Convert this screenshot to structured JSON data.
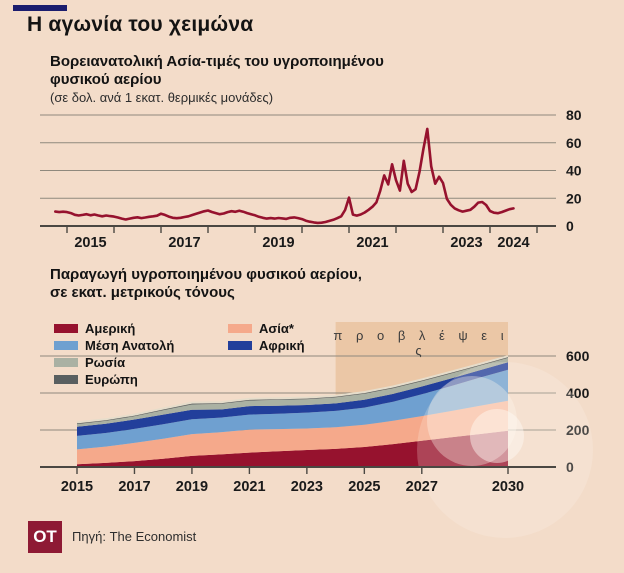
{
  "page": {
    "background_color": "#f3dcc9",
    "accent_color": "#1b1d6e",
    "title": "Η αγωνία του χειμώνα"
  },
  "chart1": {
    "heading_line1": "Βορειανατολική Ασία-τιμές του υγροποιημένου",
    "heading_line2": "φυσικού αερίου",
    "note": "(σε δολ. ανά 1 εκατ. θερμικές μονάδες)"
  },
  "chart2": {
    "heading_line1": "Παραγωγή υγροποιημένου φυσικού αερίου,",
    "heading_line2": "σε εκατ. μετρικούς τόνους",
    "forecast_label": "π ρ ο β λ έ ψ ε ι ς"
  },
  "footer": {
    "logo_text": "OT",
    "source": "Πηγή: The Economist"
  },
  "chart_data": [
    {
      "type": "line",
      "title": "Βορειανατολική Ασία - τιμές του υγροποιημένου φυσικού αερίου",
      "ylabel": "σε δολ. ανά 1 εκατ. θερμικές μονάδες",
      "line_color": "#96122e",
      "grid": true,
      "legend_position": "none",
      "xlim": [
        2014.4,
        2025.4
      ],
      "ylim": [
        0,
        80
      ],
      "y_ticks": [
        0,
        20,
        40,
        60,
        80
      ],
      "x_minor_ticks": [
        2015,
        2016,
        2017,
        2018,
        2019,
        2020,
        2021,
        2022,
        2023,
        2024,
        2025
      ],
      "x_tick_labels": [
        {
          "x": 2015.5,
          "label": "2015"
        },
        {
          "x": 2017.5,
          "label": "2017"
        },
        {
          "x": 2019.5,
          "label": "2019"
        },
        {
          "x": 2021.5,
          "label": "2021"
        },
        {
          "x": 2023.5,
          "label": "2023"
        },
        {
          "x": 2024.5,
          "label": "2024"
        }
      ],
      "x_start": 2014.75,
      "x_step": 0.0833333,
      "values": [
        10.4,
        10.0,
        10.3,
        10.0,
        9.3,
        8.1,
        7.6,
        8.0,
        8.5,
        7.7,
        8.3,
        7.6,
        7.0,
        7.6,
        7.1,
        6.8,
        6.1,
        5.3,
        4.7,
        5.3,
        5.9,
        6.3,
        5.7,
        6.1,
        6.6,
        7.0,
        7.4,
        8.9,
        8.0,
        6.8,
        5.9,
        5.6,
        5.9,
        6.5,
        7.0,
        7.9,
        8.8,
        9.7,
        10.6,
        11.2,
        10.1,
        9.3,
        8.5,
        9.0,
        10.0,
        10.7,
        10.2,
        11.0,
        10.3,
        9.3,
        8.5,
        7.7,
        6.6,
        5.9,
        5.3,
        5.7,
        5.3,
        5.8,
        5.5,
        5.1,
        5.9,
        6.2,
        5.7,
        5.0,
        3.8,
        3.1,
        2.6,
        2.2,
        2.4,
        2.9,
        3.7,
        4.5,
        5.6,
        7.0,
        11.5,
        20.5,
        8.2,
        7.5,
        8.3,
        9.7,
        11.7,
        13.9,
        17.0,
        25.5,
        36.5,
        30.0,
        44.5,
        33.0,
        25.5,
        47.0,
        30.5,
        24.5,
        26.5,
        39.0,
        55.5,
        70.0,
        43.0,
        30.5,
        35.5,
        31.0,
        19.5,
        15.3,
        12.7,
        11.3,
        10.4,
        11.0,
        11.7,
        13.9,
        16.9,
        17.3,
        15.1,
        10.8,
        9.6,
        9.2,
        10.0,
        11.1,
        12.1,
        12.7
      ]
    },
    {
      "type": "area",
      "title": "Παραγωγή υγροποιημένου φυσικού αερίου, σε εκατ. μετρικούς τόνους",
      "stacked": true,
      "grid": true,
      "xlim": [
        2015,
        2030
      ],
      "ylim": [
        0,
        650
      ],
      "y_ticks": [
        0,
        200,
        400,
        600
      ],
      "x_tick_labels": [
        2015,
        2017,
        2019,
        2021,
        2023,
        2025,
        2027,
        2030
      ],
      "forecast_start": 2024,
      "forecast_shade_color": "#ebc7a6",
      "categories": [
        2015,
        2016,
        2017,
        2018,
        2019,
        2020,
        2021,
        2022,
        2023,
        2024,
        2025,
        2026,
        2027,
        2028,
        2029,
        2030
      ],
      "series": [
        {
          "name": "Αμερική",
          "color": "#96122e",
          "values": [
            15,
            22,
            32,
            45,
            60,
            68,
            78,
            85,
            92,
            98,
            108,
            124,
            142,
            160,
            178,
            196
          ]
        },
        {
          "name": "Ασία*",
          "color": "#f5a98b",
          "values": [
            80,
            88,
            98,
            108,
            118,
            120,
            124,
            120,
            116,
            117,
            120,
            126,
            133,
            142,
            152,
            162
          ]
        },
        {
          "name": "Μέση Ανατολή",
          "color": "#6fa0d0",
          "values": [
            73,
            74,
            76,
            78,
            80,
            79,
            81,
            83,
            86,
            88,
            93,
            103,
            118,
            135,
            152,
            168
          ]
        },
        {
          "name": "Αφρική",
          "color": "#223f9b",
          "values": [
            50,
            50,
            51,
            52,
            51,
            44,
            46,
            43,
            41,
            41,
            42,
            42,
            42,
            41,
            40,
            40
          ]
        },
        {
          "name": "Ρωσία",
          "color": "#aab1a3",
          "values": [
            14,
            15,
            17,
            24,
            29,
            30,
            30,
            32,
            31,
            32,
            33,
            31,
            29,
            27,
            25,
            24
          ]
        },
        {
          "name": "Ευρώπη",
          "color": "#595f60",
          "values": [
            9,
            9,
            9,
            9,
            10,
            9,
            9,
            9,
            9,
            9,
            9,
            9,
            9,
            9,
            9,
            9
          ]
        }
      ],
      "legend_col1": [
        "Αμερική",
        "Μέση Ανατολή",
        "Ρωσία",
        "Ευρώπη"
      ],
      "legend_col2": [
        "Ασία*",
        "Αφρική"
      ]
    }
  ]
}
